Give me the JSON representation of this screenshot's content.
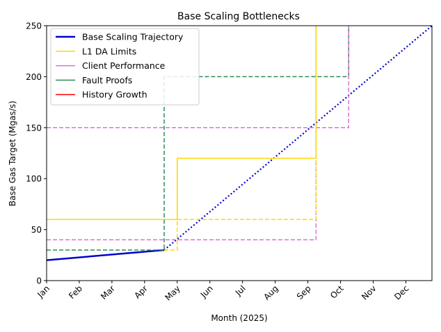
{
  "chart_data": {
    "type": "line",
    "title": "Base Scaling Bottlenecks",
    "xlabel": "Month (2025)",
    "ylabel": "Base Gas Target (Mgas/s)",
    "xlim": [
      0,
      11.8
    ],
    "ylim": [
      0,
      250
    ],
    "x_ticks": [
      0,
      1,
      2,
      3,
      4,
      5,
      6,
      7,
      8,
      9,
      10,
      11
    ],
    "x_tick_labels": [
      "Jan",
      "Feb",
      "Mar",
      "Apr",
      "May",
      "Jun",
      "Jul",
      "Aug",
      "Sep",
      "Oct",
      "Nov",
      "Dec"
    ],
    "y_ticks": [
      0,
      50,
      100,
      150,
      200,
      250
    ],
    "grid": false,
    "legend_position": "top-left",
    "colors": {
      "trajectory": "#0000cd",
      "l1da": "#ffd700",
      "client": "#da70d6",
      "fault": "#2e8b57",
      "history": "#ff0000"
    },
    "legend": [
      {
        "label": "Base Scaling Trajectory",
        "color": "#0000cd",
        "width": 2.5
      },
      {
        "label": "L1 DA Limits",
        "color": "#ffd700",
        "width": 1.5
      },
      {
        "label": "Client Performance",
        "color": "#da70d6",
        "width": 1.5
      },
      {
        "label": "Fault Proofs",
        "color": "#2e8b57",
        "width": 1.5
      },
      {
        "label": "History Growth",
        "color": "#ff0000",
        "width": 1.5
      }
    ],
    "series": [
      {
        "id": "trajectory-solid",
        "color": "#0000cd",
        "width": 2.5,
        "dash": "solid",
        "points": [
          [
            0,
            20
          ],
          [
            3.6,
            30
          ]
        ]
      },
      {
        "id": "trajectory-dotted",
        "color": "#0000cd",
        "width": 2.2,
        "dash": "dotted",
        "points": [
          [
            3.6,
            30
          ],
          [
            11.8,
            250
          ]
        ]
      },
      {
        "id": "fault-dashed",
        "color": "#2e8b57",
        "width": 1.5,
        "dash": "dashed",
        "points": [
          [
            0,
            30
          ],
          [
            3.6,
            30
          ],
          [
            3.6,
            200
          ],
          [
            9.25,
            200
          ],
          [
            9.25,
            250
          ]
        ]
      },
      {
        "id": "fault-solid",
        "color": "#2e8b57",
        "width": 1.5,
        "dash": "solid",
        "points": [
          [
            9.25,
            200
          ],
          [
            9.25,
            250
          ]
        ]
      },
      {
        "id": "client-dashed",
        "color": "#da70d6",
        "width": 1.5,
        "dash": "dashed",
        "points": [
          [
            0,
            40
          ],
          [
            8.25,
            40
          ],
          [
            8.25,
            250
          ]
        ]
      },
      {
        "id": "client-dashed-2",
        "color": "#da70d6",
        "width": 1.5,
        "dash": "dashed",
        "points": [
          [
            0,
            150
          ],
          [
            9.25,
            150
          ],
          [
            9.25,
            250
          ]
        ]
      },
      {
        "id": "l1da-solid-a",
        "color": "#ffd700",
        "width": 1.5,
        "dash": "solid",
        "points": [
          [
            0,
            60
          ],
          [
            4.0,
            60
          ],
          [
            4.0,
            120
          ],
          [
            8.25,
            120
          ],
          [
            8.25,
            250
          ]
        ]
      },
      {
        "id": "l1da-dashed-a",
        "color": "#ffd700",
        "width": 1.5,
        "dash": "dashed",
        "points": [
          [
            3.6,
            30
          ],
          [
            4.0,
            30
          ],
          [
            4.0,
            60
          ],
          [
            8.25,
            60
          ],
          [
            8.25,
            250
          ]
        ]
      }
    ]
  }
}
